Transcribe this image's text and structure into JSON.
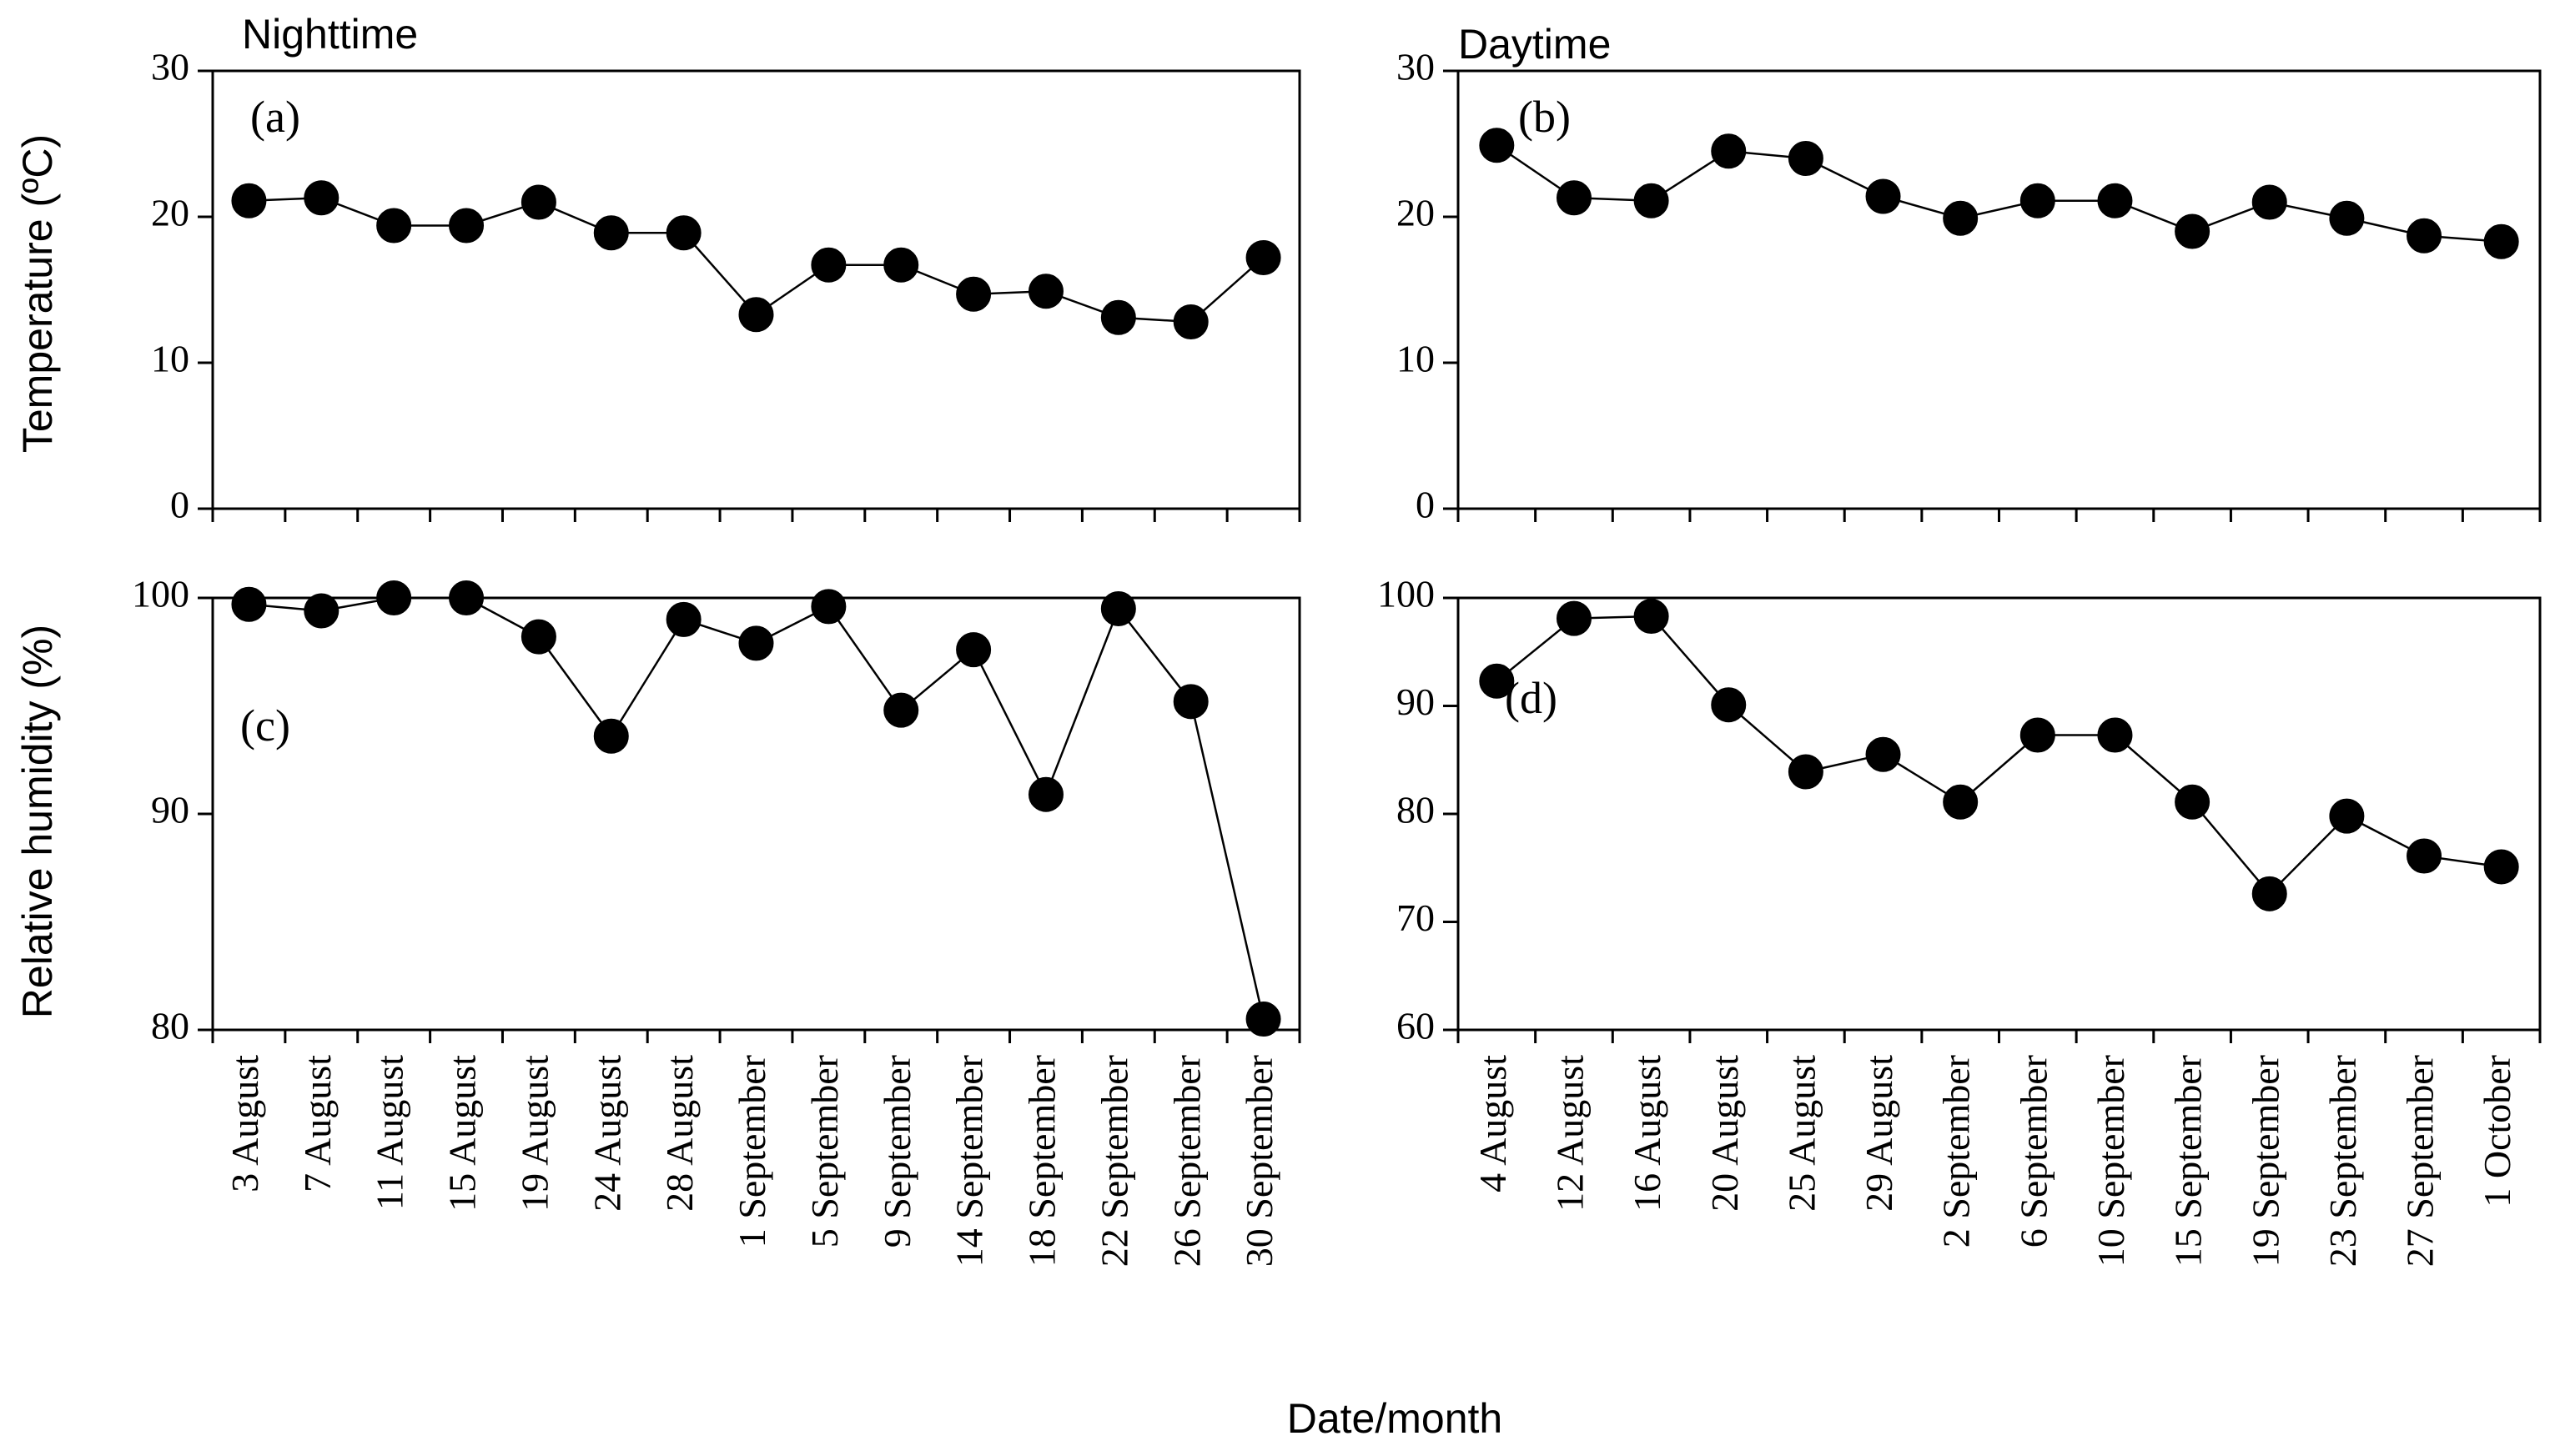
{
  "figure": {
    "shared_xlabel": "Date/month",
    "left_column_title": "Nighttime",
    "right_column_title": "Daytime"
  },
  "chart_data": [
    {
      "id": "a",
      "type": "line",
      "panel_label": "(a)",
      "title": "Nighttime",
      "ylabel": "Temperature (ºC)",
      "xlabel": "",
      "ylim": [
        0,
        30
      ],
      "yticks": [
        0,
        10,
        20,
        30
      ],
      "categories": [
        "3 August",
        "7 August",
        "11 August",
        "15 August",
        "19 August",
        "24 August",
        "28 August",
        "1 September",
        "5 September",
        "9 September",
        "14 September",
        "18 September",
        "22 September",
        "26 September",
        "30 September"
      ],
      "values": [
        21.1,
        21.3,
        19.4,
        19.4,
        21.0,
        18.9,
        18.9,
        13.3,
        16.7,
        16.7,
        14.7,
        14.9,
        13.1,
        12.8,
        17.2
      ],
      "x_tick_labels_shown": false
    },
    {
      "id": "b",
      "type": "line",
      "panel_label": "(b)",
      "title": "Daytime",
      "ylabel": "",
      "xlabel": "",
      "ylim": [
        0,
        30
      ],
      "yticks": [
        0,
        10,
        20,
        30
      ],
      "categories": [
        "4 August",
        "12 August",
        "16 August",
        "20 August",
        "25 August",
        "29 August",
        "2 September",
        "6 September",
        "10 September",
        "15 September",
        "19 September",
        "23 September",
        "27 September",
        "1 October"
      ],
      "values": [
        24.9,
        21.3,
        21.1,
        24.5,
        24.0,
        21.4,
        19.9,
        21.1,
        21.1,
        19.0,
        21.0,
        19.9,
        18.7,
        18.3
      ],
      "x_tick_labels_shown": false
    },
    {
      "id": "c",
      "type": "line",
      "panel_label": "(c)",
      "title": "",
      "ylabel": "Relative humidity (%)",
      "xlabel": "Date/month",
      "ylim": [
        80,
        100
      ],
      "yticks": [
        80,
        90,
        100
      ],
      "categories": [
        "3 August",
        "7 August",
        "11 August",
        "15 August",
        "19 August",
        "24 August",
        "28 August",
        "1 September",
        "5 September",
        "9 September",
        "14 September",
        "18 September",
        "22 September",
        "26 September",
        "30 September"
      ],
      "values": [
        99.7,
        99.4,
        100.0,
        100.0,
        98.2,
        93.6,
        99.0,
        97.9,
        99.6,
        94.8,
        97.6,
        90.9,
        99.5,
        95.2,
        80.5
      ],
      "x_tick_labels_shown": true
    },
    {
      "id": "d",
      "type": "line",
      "panel_label": "(d)",
      "title": "",
      "ylabel": "",
      "xlabel": "Date/month",
      "ylim": [
        60,
        100
      ],
      "yticks": [
        60,
        70,
        80,
        90,
        100
      ],
      "categories": [
        "4 August",
        "12 August",
        "16 August",
        "20 August",
        "25 August",
        "29 August",
        "2 September",
        "6 September",
        "10 September",
        "15 September",
        "19 September",
        "23 September",
        "27 September",
        "1 October"
      ],
      "values": [
        92.3,
        98.1,
        98.3,
        90.1,
        83.9,
        85.5,
        81.1,
        87.3,
        87.3,
        81.1,
        72.6,
        79.8,
        76.1,
        75.1
      ],
      "x_tick_labels_shown": true
    }
  ]
}
